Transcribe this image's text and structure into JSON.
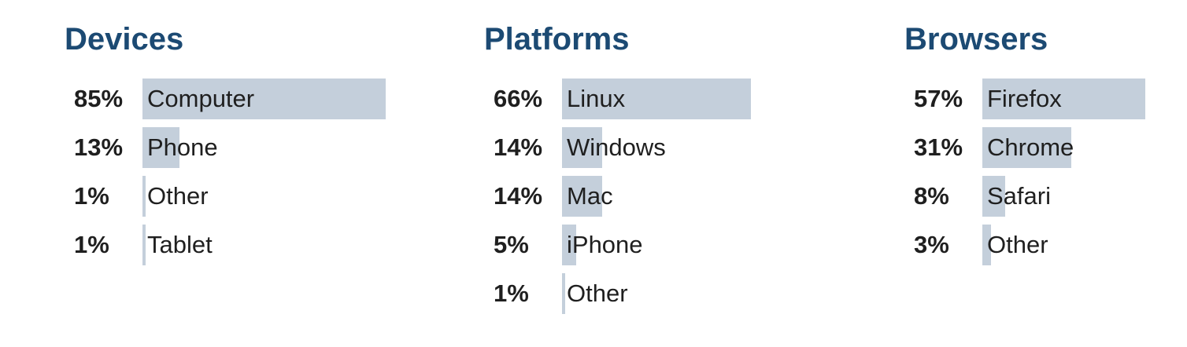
{
  "colors": {
    "title": "#1c4a73",
    "bar": "#c4cfdb",
    "text": "#1f1f1f"
  },
  "chart_data": [
    {
      "type": "bar",
      "orientation": "horizontal",
      "title": "Devices",
      "categories": [
        "Computer",
        "Phone",
        "Other",
        "Tablet"
      ],
      "values": [
        85,
        13,
        1,
        1
      ],
      "value_labels": [
        "85%",
        "13%",
        "1%",
        "1%"
      ],
      "unit": "%"
    },
    {
      "type": "bar",
      "orientation": "horizontal",
      "title": "Platforms",
      "categories": [
        "Linux",
        "Windows",
        "Mac",
        "iPhone",
        "Other"
      ],
      "values": [
        66,
        14,
        14,
        5,
        1
      ],
      "value_labels": [
        "66%",
        "14%",
        "14%",
        "5%",
        "1%"
      ],
      "unit": "%"
    },
    {
      "type": "bar",
      "orientation": "horizontal",
      "title": "Browsers",
      "categories": [
        "Firefox",
        "Chrome",
        "Safari",
        "Other"
      ],
      "values": [
        57,
        31,
        8,
        3
      ],
      "value_labels": [
        "57%",
        "31%",
        "8%",
        "3%"
      ],
      "unit": "%"
    }
  ]
}
